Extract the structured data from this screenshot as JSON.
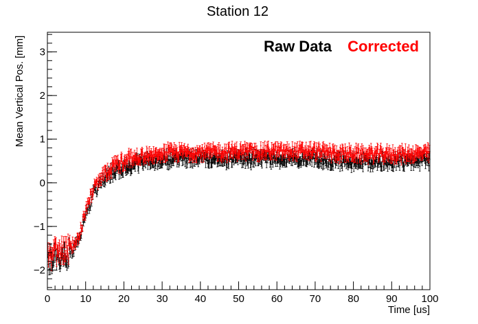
{
  "chart_data": {
    "type": "scatter",
    "title": "Station 12",
    "xlabel": "Time [us]",
    "ylabel": "Mean Vertical Pos. [mm]",
    "xlim": [
      0,
      100
    ],
    "ylim": [
      -2.45,
      3.45
    ],
    "grid": false,
    "legend_placement": "top-right",
    "error_bars": true,
    "x_ticks": [
      0,
      10,
      20,
      30,
      40,
      50,
      60,
      70,
      80,
      90,
      100
    ],
    "x_tick_labels": [
      "0",
      "10",
      "20",
      "30",
      "40",
      "50",
      "60",
      "70",
      "80",
      "90",
      "100"
    ],
    "y_ticks": [
      -2,
      -1,
      0,
      1,
      2,
      3
    ],
    "y_tick_labels": [
      "−2",
      "−1",
      "0",
      "1",
      "2",
      "3"
    ],
    "colors": {
      "Raw Data": "#000000",
      "Corrected": "#ff0000"
    },
    "series": [
      {
        "name": "Raw Data",
        "x": [
          0,
          2,
          4,
          6,
          8,
          10,
          12,
          14,
          16,
          18,
          20,
          22,
          24,
          26,
          28,
          30,
          35,
          40,
          45,
          50,
          55,
          60,
          65,
          70,
          75,
          80,
          85,
          90,
          95,
          100
        ],
        "values": [
          -1.85,
          -1.65,
          -1.7,
          -1.6,
          -1.35,
          -0.75,
          -0.25,
          0.02,
          0.18,
          0.28,
          0.35,
          0.42,
          0.45,
          0.48,
          0.5,
          0.52,
          0.55,
          0.55,
          0.55,
          0.55,
          0.55,
          0.55,
          0.55,
          0.55,
          0.5,
          0.48,
          0.48,
          0.48,
          0.5,
          0.52
        ]
      },
      {
        "name": "Corrected",
        "x": [
          0,
          2,
          4,
          6,
          8,
          10,
          12,
          14,
          16,
          18,
          20,
          22,
          24,
          26,
          28,
          30,
          35,
          40,
          45,
          50,
          55,
          60,
          65,
          70,
          75,
          80,
          85,
          90,
          95,
          100
        ],
        "values": [
          -1.75,
          -1.55,
          -1.6,
          -1.5,
          -1.3,
          -0.65,
          -0.15,
          0.12,
          0.3,
          0.42,
          0.5,
          0.56,
          0.6,
          0.62,
          0.65,
          0.68,
          0.7,
          0.7,
          0.7,
          0.72,
          0.72,
          0.72,
          0.72,
          0.72,
          0.68,
          0.66,
          0.66,
          0.65,
          0.66,
          0.68
        ]
      }
    ]
  }
}
